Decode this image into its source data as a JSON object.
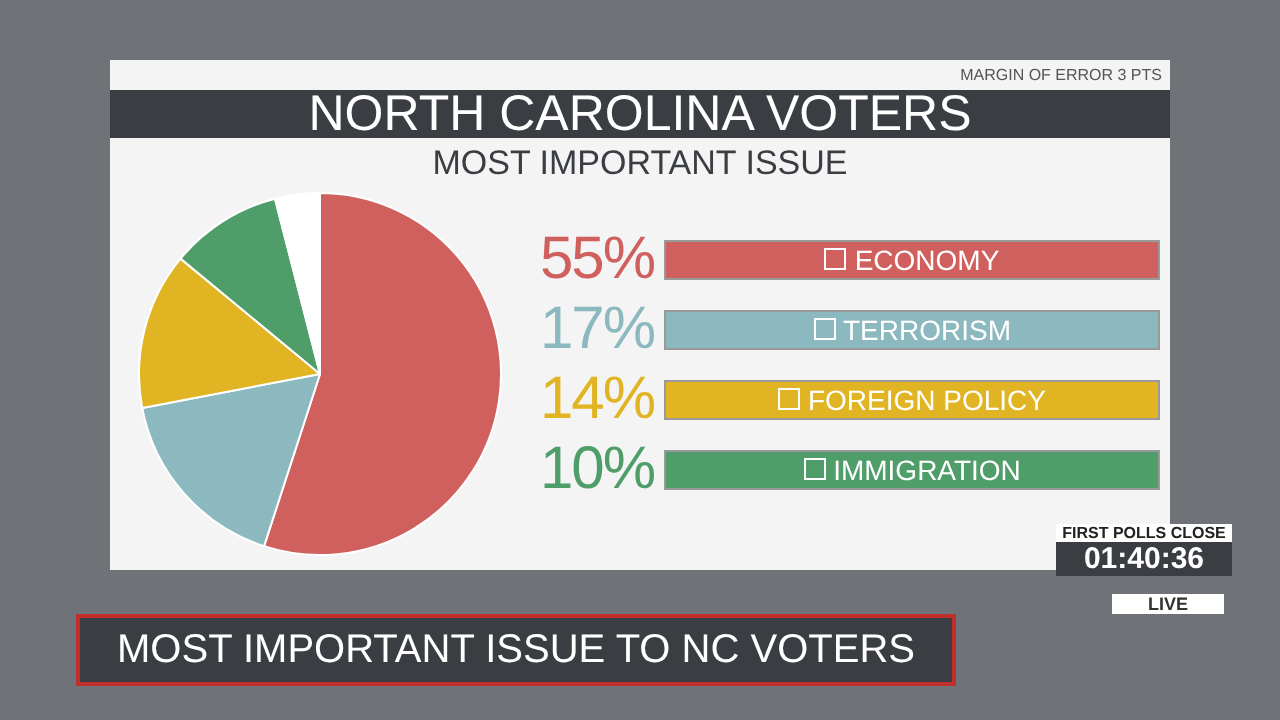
{
  "chart_data": {
    "type": "pie",
    "title": "NORTH CAROLINA VOTERS",
    "subtitle": "MOST IMPORTANT ISSUE",
    "categories": [
      "ECONOMY",
      "TERRORISM",
      "FOREIGN POLICY",
      "IMMIGRATION",
      null
    ],
    "values": [
      55,
      17,
      14,
      10,
      4
    ],
    "colors": [
      "#d0605e",
      "#8cb8c0",
      "#e0b422",
      "#4f9e6a",
      "#ffffff"
    ],
    "value_labels": [
      "55%",
      "17%",
      "14%",
      "10%",
      null
    ],
    "legend": "right",
    "annotations": [
      "MARGIN OF ERROR 3 PTS",
      "MOST IMPORTANT ISSUE TO NC VOTERS",
      "FIRST POLLS CLOSE",
      "01:40:36",
      "LIVE"
    ]
  }
}
